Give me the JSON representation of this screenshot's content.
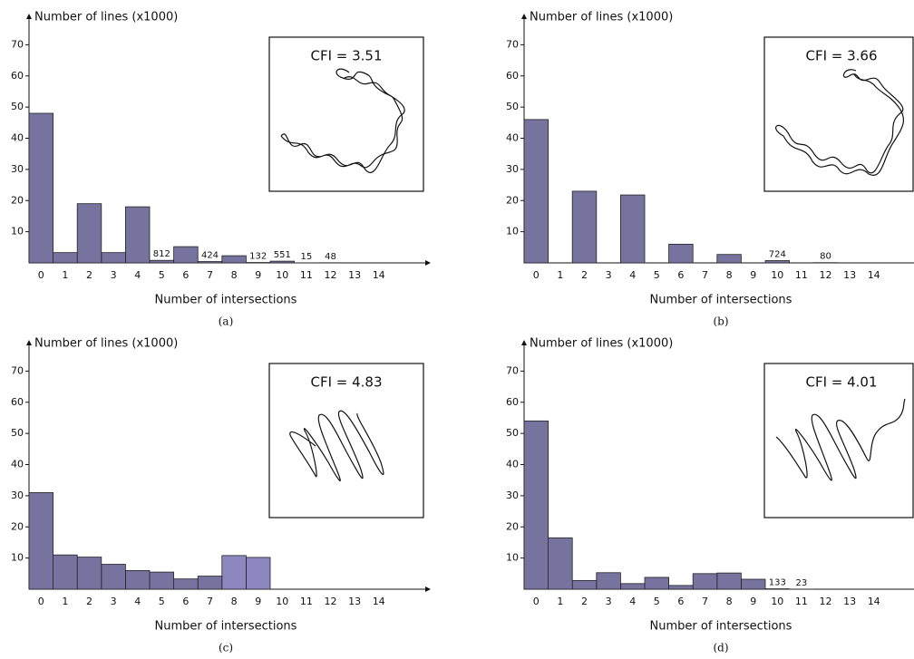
{
  "chart_data": [
    {
      "type": "bar",
      "caption": "(a)",
      "annotation": "CFI = 3.51",
      "y_label": "Number of lines (x1000)",
      "x_label": "Number of intersections",
      "categories": [
        "0",
        "1",
        "2",
        "3",
        "4",
        "5",
        "6",
        "7",
        "8",
        "9",
        "10",
        "11",
        "12",
        "13",
        "14"
      ],
      "values": [
        48,
        3.3,
        19,
        3.3,
        18,
        0.812,
        5.2,
        0.424,
        2.3,
        0.132,
        0.551,
        0.015,
        0.048,
        null,
        null
      ],
      "value_labels": [
        null,
        null,
        null,
        null,
        null,
        "812",
        null,
        "424",
        null,
        "132",
        "551",
        "15",
        "48",
        null,
        null
      ],
      "color": "#77739f",
      "ylim": [
        0,
        80
      ],
      "yticks": [
        10,
        20,
        30,
        40,
        50,
        60,
        70
      ]
    },
    {
      "type": "bar",
      "caption": "(b)",
      "annotation": "CFI = 3.66",
      "y_label": "Number of lines (x1000)",
      "x_label": "Number of intersections",
      "categories": [
        "0",
        "1",
        "2",
        "3",
        "4",
        "5",
        "6",
        "7",
        "8",
        "9",
        "10",
        "11",
        "12",
        "13",
        "14"
      ],
      "values": [
        46,
        null,
        23,
        null,
        21.8,
        null,
        6,
        null,
        2.7,
        null,
        0.724,
        null,
        0.08,
        null,
        null
      ],
      "value_labels": [
        null,
        null,
        null,
        null,
        null,
        null,
        null,
        null,
        null,
        null,
        "724",
        null,
        "80",
        null,
        null
      ],
      "color": "#77739f",
      "ylim": [
        0,
        80
      ],
      "yticks": [
        10,
        20,
        30,
        40,
        50,
        60,
        70
      ]
    },
    {
      "type": "bar",
      "caption": "(c)",
      "annotation": "CFI = 4.83",
      "y_label": "Number of lines (x1000)",
      "x_label": "Number of intersections",
      "categories": [
        "0",
        "1",
        "2",
        "3",
        "4",
        "5",
        "6",
        "7",
        "8",
        "9",
        "10",
        "11",
        "12",
        "13",
        "14"
      ],
      "values": [
        31,
        11,
        10.3,
        8,
        6,
        5.5,
        3.3,
        4.2,
        10.8,
        10.2,
        null,
        null,
        null,
        null,
        null
      ],
      "colors": [
        "#77739f",
        "#77739f",
        "#77739f",
        "#77739f",
        "#77739f",
        "#77739f",
        "#77739f",
        "#77739f",
        "#8c88bf",
        "#8c88bf",
        null,
        null,
        null,
        null,
        null
      ],
      "color": "#77739f",
      "ylim": [
        0,
        80
      ],
      "yticks": [
        10,
        20,
        30,
        40,
        50,
        60,
        70
      ]
    },
    {
      "type": "bar",
      "caption": "(d)",
      "annotation": "CFI = 4.01",
      "y_label": "Number of lines (x1000)",
      "x_label": "Number of intersections",
      "categories": [
        "0",
        "1",
        "2",
        "3",
        "4",
        "5",
        "6",
        "7",
        "8",
        "9",
        "10",
        "11",
        "12",
        "13",
        "14"
      ],
      "values": [
        54,
        16.5,
        2.8,
        5.3,
        1.8,
        3.8,
        1.2,
        5,
        5.2,
        3.2,
        0.133,
        0.023,
        null,
        null,
        null
      ],
      "value_labels": [
        null,
        null,
        null,
        null,
        null,
        null,
        null,
        null,
        null,
        null,
        "133",
        "23",
        null,
        null,
        null
      ],
      "color": "#77739f",
      "ylim": [
        0,
        80
      ],
      "yticks": [
        10,
        20,
        30,
        40,
        50,
        60,
        70
      ]
    }
  ]
}
